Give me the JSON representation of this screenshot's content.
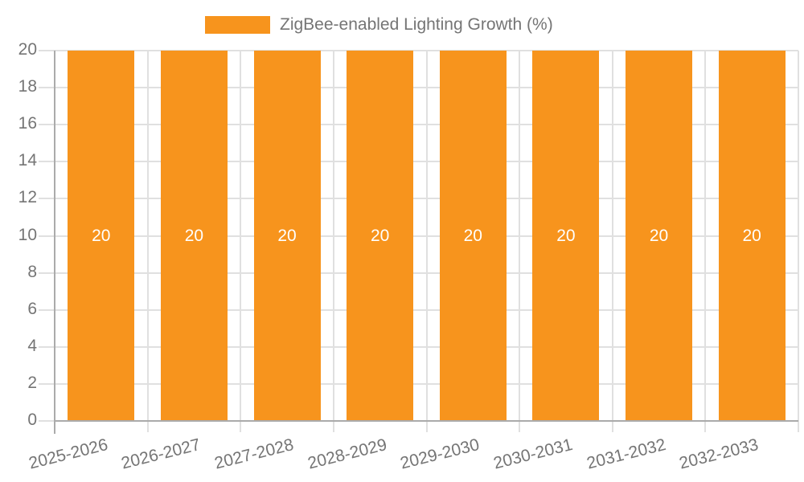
{
  "legend": {
    "label": "ZigBee-enabled Lighting Growth (%)"
  },
  "chart_data": {
    "type": "bar",
    "title": "",
    "xlabel": "",
    "ylabel": "",
    "categories": [
      "2025-2026",
      "2026-2027",
      "2027-2028",
      "2028-2029",
      "2029-2030",
      "2030-2031",
      "2031-2032",
      "2032-2033"
    ],
    "series": [
      {
        "name": "ZigBee-enabled Lighting Growth (%)",
        "values": [
          20,
          20,
          20,
          20,
          20,
          20,
          20,
          20
        ],
        "bar_labels": [
          "20",
          "20",
          "20",
          "20",
          "20",
          "20",
          "20",
          "20"
        ]
      }
    ],
    "ylim": [
      0,
      20
    ],
    "yticks": [
      0,
      2,
      4,
      6,
      8,
      10,
      12,
      14,
      16,
      18,
      20
    ],
    "grid": true,
    "legend_position": "top-center",
    "colors": {
      "bar": "#F7941D",
      "grid": "#E0E0E0",
      "axis": "#ABABAB",
      "text": "#757575",
      "bar_label": "#FFFFFF",
      "background": "#FFFFFF"
    }
  }
}
